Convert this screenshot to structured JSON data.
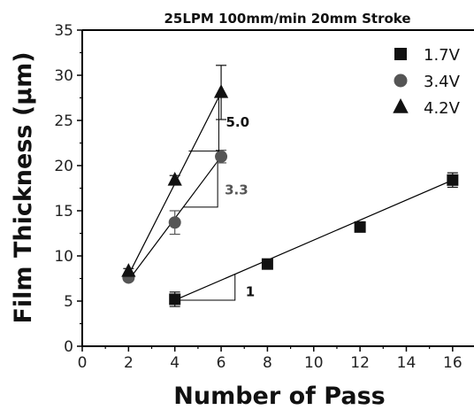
{
  "chart_data": {
    "type": "scatter",
    "title": "25LPM 100mm/min 20mm Stroke",
    "xlabel": "Number of Pass",
    "ylabel": "Film Thickness (μm)",
    "xlim": [
      0,
      17
    ],
    "ylim": [
      0,
      35
    ],
    "xticks": [
      "0",
      "2",
      "4",
      "6",
      "8",
      "10",
      "12",
      "14",
      "16"
    ],
    "yticks": [
      "0",
      "5",
      "10",
      "15",
      "20",
      "25",
      "30",
      "35"
    ],
    "grid": false,
    "legend_position": "top-right",
    "series": [
      {
        "name": "1.7V",
        "marker": "square",
        "x": [
          4,
          8,
          12,
          16
        ],
        "y": [
          5.2,
          9.1,
          13.2,
          18.4
        ],
        "err": [
          0.8,
          0.3,
          0.3,
          0.8
        ],
        "fit": [
          [
            4,
            5.1
          ],
          [
            16,
            18.4
          ]
        ],
        "slope_label": "1"
      },
      {
        "name": "3.4V",
        "marker": "circle",
        "x": [
          2,
          4,
          6
        ],
        "y": [
          7.6,
          13.7,
          21.0
        ],
        "err": [
          0.3,
          1.3,
          0.7
        ],
        "fit": [
          [
            2,
            7.3
          ],
          [
            6,
            21.0
          ]
        ],
        "slope_label": "3.3"
      },
      {
        "name": "4.2V",
        "marker": "triangle",
        "x": [
          2,
          4,
          6
        ],
        "y": [
          8.3,
          18.4,
          28.1
        ],
        "err": [
          0.3,
          0.5,
          3.0
        ],
        "fit": [
          [
            2,
            7.9
          ],
          [
            6,
            28.1
          ]
        ],
        "slope_label": "5.0"
      }
    ],
    "colors": {
      "1.7V": "#111111",
      "3.4V": "#555555",
      "4.2V": "#111111",
      "ann_1.7V": "#111111",
      "ann_3.4V": "#555555",
      "ann_4.2V": "#111111"
    }
  }
}
